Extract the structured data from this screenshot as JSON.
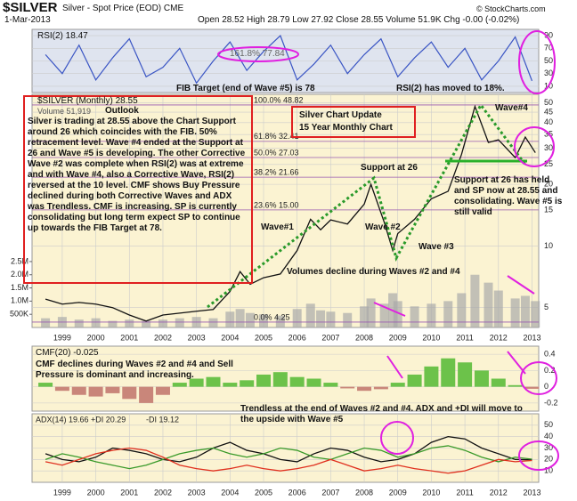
{
  "header": {
    "symbol": "$SILVER",
    "name": "Silver - Spot Price (EOD) CME",
    "date": "1-Mar-2013",
    "quote": "Open 28.52 High 28.79 Low 27.92 Close 28.55 Volume 51.9K Chg -0.00 (-0.02%)",
    "source": "© StockCharts.com"
  },
  "chart_data": [
    {
      "type": "line",
      "title": "RSI(2) 18.47",
      "color": "#3a55c4",
      "x": [
        1998.5,
        1999,
        1999.5,
        2000,
        2000.5,
        2001,
        2001.5,
        2002,
        2002.5,
        2003,
        2003.5,
        2004,
        2004.5,
        2005,
        2005.5,
        2006,
        2006.5,
        2007,
        2007.5,
        2008,
        2008.5,
        2009,
        2009.5,
        2010,
        2010.5,
        2011,
        2011.5,
        2012,
        2012.5,
        2013
      ],
      "values": [
        60,
        30,
        75,
        20,
        55,
        85,
        25,
        40,
        70,
        15,
        50,
        80,
        35,
        65,
        90,
        20,
        45,
        75,
        30,
        60,
        85,
        25,
        55,
        80,
        40,
        70,
        20,
        50,
        88,
        18.47
      ],
      "xlim": [
        1998.1,
        2013.2
      ],
      "ylim": [
        0,
        100
      ],
      "yticks": [
        10,
        30,
        50,
        70,
        90
      ],
      "grid": true,
      "annotations": [
        "161.8% 77.84",
        "FIB Target (end of Wave #5) is 78",
        "RSI(2) has moved to 18%."
      ]
    },
    {
      "type": "line",
      "log_scale": true,
      "series": [
        {
          "name": "$SILVER (Monthly) 28.55",
          "color": "#111111",
          "x": [
            1998.5,
            1999,
            1999.5,
            2000,
            2000.5,
            2001,
            2001.5,
            2002,
            2002.5,
            2003,
            2003.5,
            2004,
            2004.3,
            2004.6,
            2005,
            2005.5,
            2006,
            2006.4,
            2006.7,
            2007,
            2007.5,
            2008,
            2008.2,
            2008.6,
            2008.85,
            2009,
            2009.5,
            2010,
            2010.5,
            2010.9,
            2011.3,
            2011.7,
            2012,
            2012.5,
            2012.8,
            2013.1
          ],
          "values": [
            5.5,
            5.2,
            5.3,
            5.2,
            5.0,
            4.6,
            4.3,
            4.6,
            4.7,
            4.8,
            4.9,
            6.0,
            7.5,
            6.5,
            7.0,
            7.3,
            9.5,
            13.5,
            12.0,
            13.4,
            12.8,
            16.0,
            20.0,
            13.0,
            9.5,
            11.5,
            13.5,
            17.0,
            18.5,
            28.0,
            48,
            32,
            33,
            27,
            34,
            28.55
          ]
        }
      ],
      "volume": {
        "name": "Volume 51,919",
        "color": "#a9a9a9",
        "values": [
          350000,
          400000,
          300000,
          350000,
          250000,
          300000,
          250000,
          300000,
          350000,
          400000,
          350000,
          600000,
          700000,
          550000,
          500000,
          450000,
          700000,
          900000,
          650000,
          600000,
          550000,
          800000,
          1100000,
          900000,
          1300000,
          1000000,
          800000,
          900000,
          1000000,
          1300000,
          2000000,
          1700000,
          1400000,
          1100000,
          1200000,
          1000000
        ],
        "ylim": [
          0,
          2700000
        ],
        "yticks": [
          {
            "value": 500000,
            "label": "500K"
          },
          {
            "value": 1000000,
            "label": "1.0M"
          },
          {
            "value": 1500000,
            "label": "1.5M"
          },
          {
            "value": 2000000,
            "label": "2.0M"
          },
          {
            "value": 2500000,
            "label": "2.5M"
          }
        ]
      },
      "xlim": [
        1998.1,
        2013.2
      ],
      "xticks": [
        1999,
        2000,
        2001,
        2002,
        2003,
        2004,
        2005,
        2006,
        2007,
        2008,
        2009,
        2010,
        2011,
        2012,
        2013
      ],
      "ylim": [
        4,
        55
      ],
      "yticks": [
        5,
        10,
        15,
        20,
        25,
        30,
        35,
        40,
        45,
        50
      ],
      "grid": true,
      "fib_levels": [
        {
          "value": 48.82,
          "label": "100.0% 48.82"
        },
        {
          "value": 32.41,
          "label": "61.8% 32.41"
        },
        {
          "value": 27.03,
          "label": "50.0% 27.03"
        },
        {
          "value": 21.66,
          "label": "38.2% 21.66"
        },
        {
          "value": 15.0,
          "label": "23.6% 15.00"
        },
        {
          "value": 4.25,
          "label": "0.0% 4.25"
        }
      ],
      "outlook_title": "Outlook",
      "outlook": "Silver is trading at 28.55 above the Chart Support around 26 which coincides with the FIB. 50% retracement level. Wave #4 ended at the Support at 26 and Wave #5 is developing. The other Corrective Wave #2 was complete when RSI(2) was at extreme and with Wave #4, also a Corrective Wave, RSI(2) reversed at the 10 level. CMF shows Buy Pressure declined during both Corrective Waves and ADX was Trendless. CMF is increasing. SP is currently consolidating but long term expect SP to continue up towards the FIB Target at 78.",
      "annotations": [
        "Silver Chart Update",
        "15 Year Monthly Chart",
        "Wave#4",
        "Support at 26",
        "Support at 26 has held and SP now at 28.55 and consolidating. Wave #5 is still valid",
        "Wave#1",
        "Wave #2",
        "Wave #3",
        "Volumes decline during Waves #2 and #4"
      ]
    },
    {
      "type": "bar",
      "title": "CMF(20) -0.025",
      "color": "#6cc24a",
      "neg_color": "#c9867a",
      "x": [
        1998.5,
        1999,
        1999.5,
        2000,
        2000.5,
        2001,
        2001.5,
        2002,
        2002.5,
        2003,
        2003.5,
        2004,
        2004.5,
        2005,
        2005.5,
        2006,
        2006.5,
        2007,
        2007.5,
        2008,
        2008.5,
        2009,
        2009.5,
        2010,
        2010.5,
        2011,
        2011.5,
        2012,
        2012.5,
        2013
      ],
      "values": [
        0.05,
        -0.05,
        -0.1,
        -0.12,
        -0.08,
        -0.15,
        -0.2,
        -0.1,
        0.05,
        0.1,
        0.12,
        0.05,
        0.08,
        0.15,
        0.18,
        0.12,
        0.1,
        0.05,
        -0.02,
        -0.05,
        -0.03,
        0.05,
        0.15,
        0.25,
        0.35,
        0.3,
        0.2,
        0.1,
        0.02,
        -0.025
      ],
      "xlim": [
        1998.1,
        2013.2
      ],
      "ylim": [
        -0.3,
        0.5
      ],
      "yticks": [
        -0.2,
        0.0,
        0.2,
        0.4
      ],
      "grid": true,
      "annotations": [
        "CMF declines during Waves #2 and #4 and Sell Pressure is dominant and increasing."
      ]
    },
    {
      "type": "line",
      "x": [
        1998.5,
        1999,
        1999.5,
        2000,
        2000.5,
        2001,
        2001.5,
        2002,
        2002.5,
        2003,
        2003.5,
        2004,
        2004.5,
        2005,
        2005.5,
        2006,
        2006.5,
        2007,
        2007.5,
        2008,
        2008.5,
        2009,
        2009.5,
        2010,
        2010.5,
        2011,
        2011.5,
        2012,
        2012.5,
        2013
      ],
      "series": [
        {
          "name": "ADX(14) 19.66",
          "color": "#111111",
          "values": [
            25,
            20,
            18,
            22,
            30,
            28,
            25,
            20,
            18,
            22,
            30,
            35,
            28,
            25,
            20,
            18,
            25,
            30,
            28,
            22,
            18,
            20,
            25,
            35,
            40,
            38,
            30,
            25,
            20,
            19.66
          ]
        },
        {
          "name": "+DI 20.29",
          "color": "#3a9a2a",
          "values": [
            20,
            25,
            22,
            18,
            15,
            12,
            15,
            20,
            25,
            28,
            30,
            25,
            22,
            25,
            30,
            28,
            22,
            20,
            25,
            30,
            28,
            22,
            25,
            30,
            32,
            28,
            22,
            18,
            22,
            20.29
          ]
        },
        {
          "name": "-DI 19.12",
          "color": "#e0301e",
          "values": [
            18,
            15,
            20,
            25,
            28,
            30,
            28,
            22,
            15,
            12,
            10,
            12,
            15,
            12,
            10,
            12,
            15,
            20,
            15,
            10,
            12,
            15,
            12,
            10,
            8,
            10,
            15,
            20,
            18,
            19.12
          ]
        }
      ],
      "xlim": [
        1998.1,
        2013.2
      ],
      "xticks": [
        1999,
        2000,
        2001,
        2002,
        2003,
        2004,
        2005,
        2006,
        2007,
        2008,
        2009,
        2010,
        2011,
        2012,
        2013
      ],
      "ylim": [
        0,
        60
      ],
      "yticks": [
        10,
        20,
        30,
        40,
        50
      ],
      "grid": true,
      "annotations": [
        "Trendless at the end of Waves #2 and #4. ADX and +DI will move to the upside with Wave #5"
      ]
    }
  ]
}
